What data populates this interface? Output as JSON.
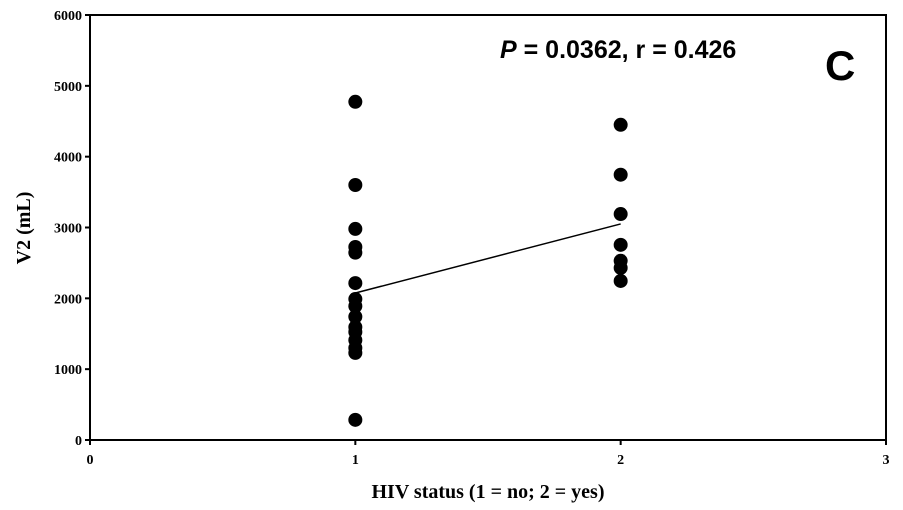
{
  "chart_data": {
    "type": "scatter",
    "annotation": [
      "P",
      " = 0.0362, r = 0.426"
    ],
    "panel_label": "C",
    "x_label": "HIV status (1 = no; 2 = yes)",
    "y_label": "V2 (mL)",
    "series": [
      {
        "color": "#000000",
        "x": [
          1,
          1,
          1,
          1,
          1,
          1,
          1,
          1,
          1,
          1,
          1,
          1,
          1,
          1,
          1,
          2,
          2,
          2,
          2,
          2,
          2,
          2
        ],
        "values": [
          4775,
          3600,
          2980,
          2725,
          2645,
          2215,
          1990,
          1890,
          1740,
          1595,
          1525,
          1410,
          1300,
          1230,
          285,
          4450,
          3745,
          3190,
          2755,
          2530,
          2430,
          2245
        ]
      }
    ],
    "fit_line": {
      "x": [
        1,
        2
      ],
      "y": [
        2075,
        3050
      ]
    },
    "xlim": [
      0,
      3
    ],
    "xticks": [
      0,
      1,
      2,
      3
    ],
    "ylim": [
      0,
      6000
    ],
    "yticks": [
      0,
      1000,
      2000,
      3000,
      4000,
      5000,
      6000
    ],
    "grid": false
  }
}
